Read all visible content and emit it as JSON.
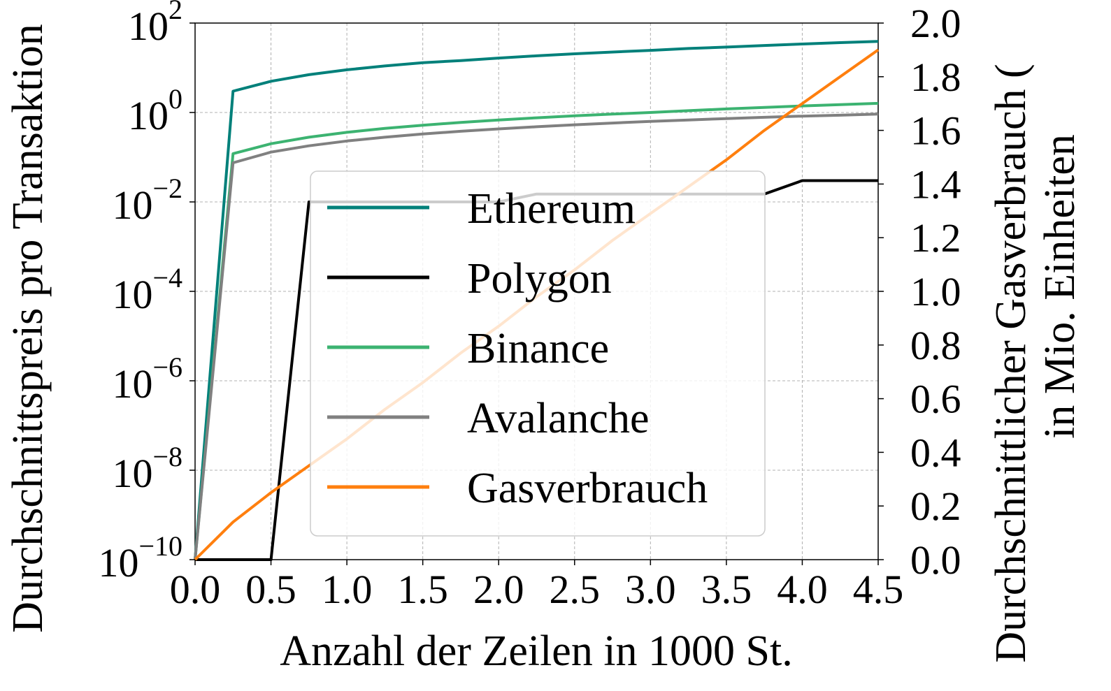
{
  "chart_data": {
    "type": "line",
    "xlabel": "Anzahl der Zeilen in 1000 St.",
    "ylabel_left": "Durchschnittspreis pro Transaktion",
    "ylabel_right_line1": "Durchschnittlicher Gasverbrauch (",
    "ylabel_right_line2": "in Mio. Einheiten",
    "xlim": [
      0,
      4.5
    ],
    "xticks": [
      "0.0",
      "0.5",
      "1.0",
      "1.5",
      "2.0",
      "2.5",
      "3.0",
      "3.5",
      "4.0",
      "4.5"
    ],
    "y_left_scale": "log",
    "y_left_lim": [
      1e-10,
      100
    ],
    "y_left_ticks": [
      {
        "base": "10",
        "exp": "2"
      },
      {
        "base": "10",
        "exp": "0"
      },
      {
        "base": "10",
        "exp": "−2"
      },
      {
        "base": "10",
        "exp": "−4"
      },
      {
        "base": "10",
        "exp": "−6"
      },
      {
        "base": "10",
        "exp": "−8"
      },
      {
        "base": "10",
        "exp": "−10"
      }
    ],
    "y_right_lim": [
      0,
      2.0
    ],
    "y_right_ticks": [
      "2.0",
      "1.8",
      "1.6",
      "1.4",
      "1.2",
      "1.0",
      "0.8",
      "0.6",
      "0.4",
      "0.2",
      "0.0"
    ],
    "grid": true,
    "legend_position": "center",
    "x": [
      0,
      0.25,
      0.5,
      0.75,
      1.0,
      1.25,
      1.5,
      1.75,
      2.0,
      2.25,
      2.5,
      2.75,
      3.0,
      3.25,
      3.5,
      3.75,
      4.0,
      4.25,
      4.5
    ],
    "series": [
      {
        "name": "Ethereum",
        "color": "#00807a",
        "axis": "left",
        "values": [
          1e-10,
          3.0,
          5.0,
          7.0,
          9.0,
          11.0,
          13.0,
          14.5,
          16.5,
          18.5,
          20.5,
          22.5,
          24.5,
          27.0,
          29.0,
          31.5,
          34.0,
          36.5,
          39.0
        ]
      },
      {
        "name": "Polygon",
        "color": "#000000",
        "axis": "left",
        "values": [
          1e-10,
          1e-10,
          1e-10,
          0.01,
          0.01,
          0.01,
          0.01,
          0.01,
          0.01,
          0.015,
          0.015,
          0.015,
          0.015,
          0.015,
          0.015,
          0.015,
          0.03,
          0.03,
          0.03
        ]
      },
      {
        "name": "Binance",
        "color": "#3cb371",
        "axis": "left",
        "values": [
          1e-10,
          0.12,
          0.2,
          0.28,
          0.36,
          0.44,
          0.52,
          0.6,
          0.68,
          0.76,
          0.84,
          0.92,
          1.0,
          1.1,
          1.2,
          1.3,
          1.4,
          1.5,
          1.6
        ]
      },
      {
        "name": "Avalanche",
        "color": "#808080",
        "axis": "left",
        "values": [
          1e-10,
          0.075,
          0.13,
          0.18,
          0.23,
          0.28,
          0.33,
          0.38,
          0.43,
          0.48,
          0.53,
          0.58,
          0.63,
          0.68,
          0.73,
          0.78,
          0.83,
          0.87,
          0.92
        ]
      },
      {
        "name": "Gasverbrauch",
        "color": "#ff7f0e",
        "axis": "right",
        "values": [
          0.0,
          0.14,
          0.25,
          0.35,
          0.45,
          0.56,
          0.66,
          0.77,
          0.87,
          0.98,
          1.08,
          1.19,
          1.29,
          1.39,
          1.49,
          1.6,
          1.7,
          1.8,
          1.9
        ]
      }
    ]
  }
}
